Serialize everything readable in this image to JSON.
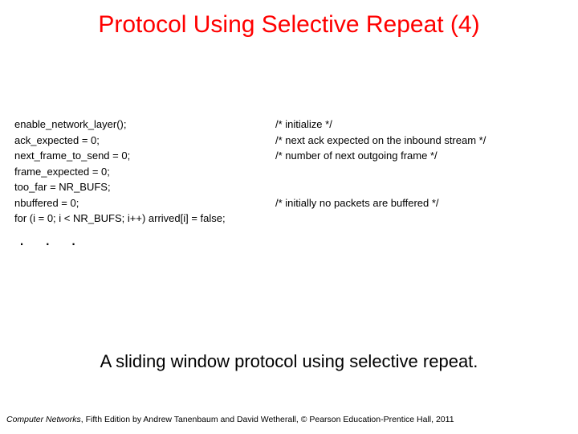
{
  "title": {
    "text": "Protocol Using Selective Repeat (4)",
    "color": "#ff0000"
  },
  "code": {
    "color": "#000000",
    "lines": [
      {
        "left": "enable_network_layer();",
        "right": "/* initialize */"
      },
      {
        "left": "ack_expected = 0;",
        "right": "/* next ack expected on the inbound stream */"
      },
      {
        "left": "next_frame_to_send = 0;",
        "right": "/* number of next outgoing frame */"
      },
      {
        "left": "frame_expected = 0;",
        "right": ""
      },
      {
        "left": "too_far = NR_BUFS;",
        "right": ""
      },
      {
        "left": "nbuffered = 0;",
        "right": "/* initially no packets are buffered */"
      },
      {
        "left": "for (i = 0; i < NR_BUFS; i++) arrived[i] = false;",
        "right": ""
      }
    ]
  },
  "ellipsis": ". . .",
  "caption": "A sliding window protocol using selective repeat.",
  "footer": {
    "book": "Computer Networks",
    "rest": ", Fifth Edition by Andrew Tanenbaum and David Wetherall, © Pearson Education-Prentice Hall, 2011"
  }
}
